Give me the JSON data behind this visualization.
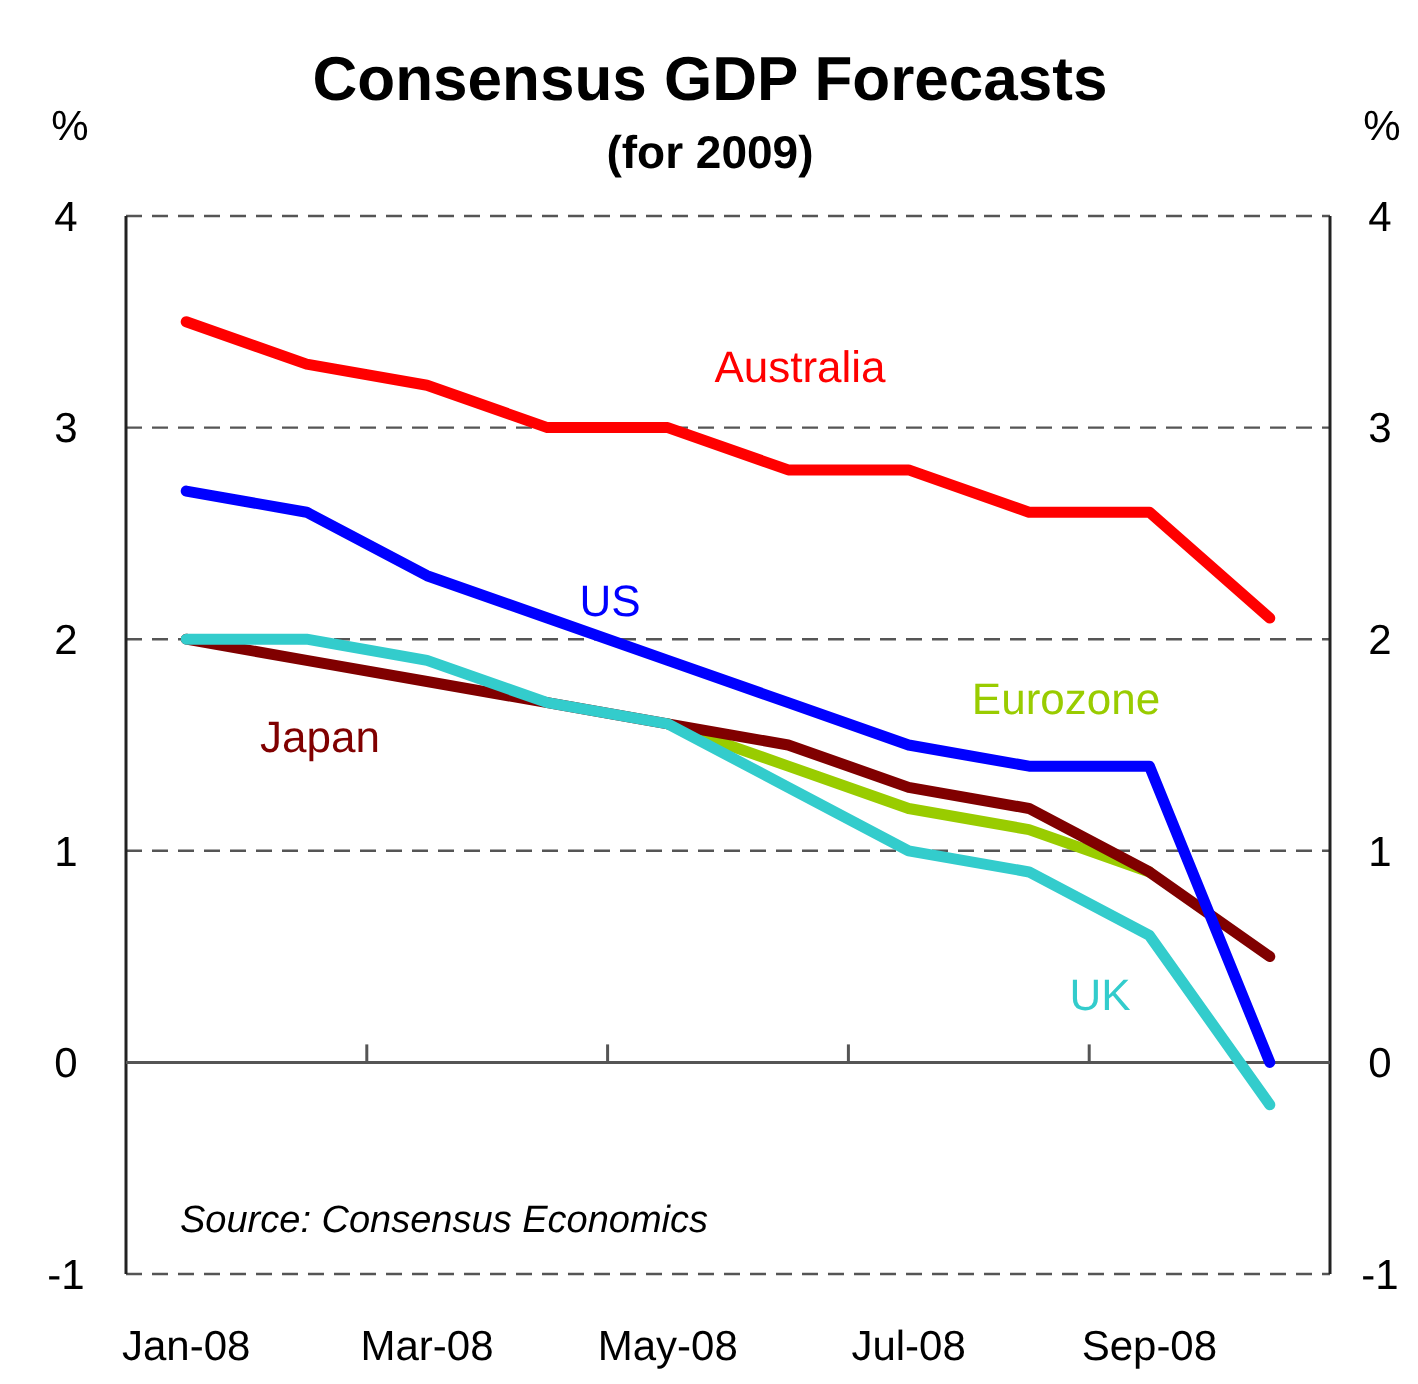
{
  "chart_data": {
    "type": "line",
    "title": "Consensus GDP Forecasts",
    "subtitle": "(for 2009)",
    "ylabel": "%",
    "y2label": "%",
    "annotations": [
      "Source: Consensus Economics"
    ],
    "categories": [
      "Jan-08",
      null,
      "Mar-08",
      null,
      "May-08",
      null,
      "Jul-08",
      null,
      "Sep-08",
      null
    ],
    "series": [
      {
        "name": "Eurozone",
        "color": "#99cc00",
        "values": [
          null,
          null,
          null,
          null,
          1.6,
          1.4,
          1.2,
          1.1,
          0.9,
          null
        ]
      },
      {
        "name": "Japan",
        "color": "#800000",
        "values": [
          2.0,
          1.9,
          1.8,
          1.7,
          1.6,
          1.5,
          1.3,
          1.2,
          0.9,
          0.5
        ]
      },
      {
        "name": "UK",
        "color": "#33cccc",
        "values": [
          2.0,
          2.0,
          1.9,
          1.7,
          1.6,
          1.3,
          1.0,
          0.9,
          0.6,
          -0.2
        ]
      },
      {
        "name": "US",
        "color": "#0000ff",
        "values": [
          2.7,
          2.6,
          2.3,
          2.1,
          1.9,
          1.7,
          1.5,
          1.4,
          1.4,
          0.0
        ]
      },
      {
        "name": "Australia",
        "color": "#ff0000",
        "values": [
          3.5,
          3.3,
          3.2,
          3.0,
          3.0,
          2.8,
          2.8,
          2.6,
          2.6,
          2.1
        ]
      }
    ],
    "ylim": [
      -1,
      4
    ],
    "yticks": [
      -1,
      0,
      1,
      2,
      3,
      4
    ],
    "y2lim": [
      -1,
      4
    ],
    "y2ticks": [
      -1,
      0,
      1,
      2,
      3,
      4
    ],
    "grid": "y",
    "line_style": "solid",
    "marker": "none"
  }
}
